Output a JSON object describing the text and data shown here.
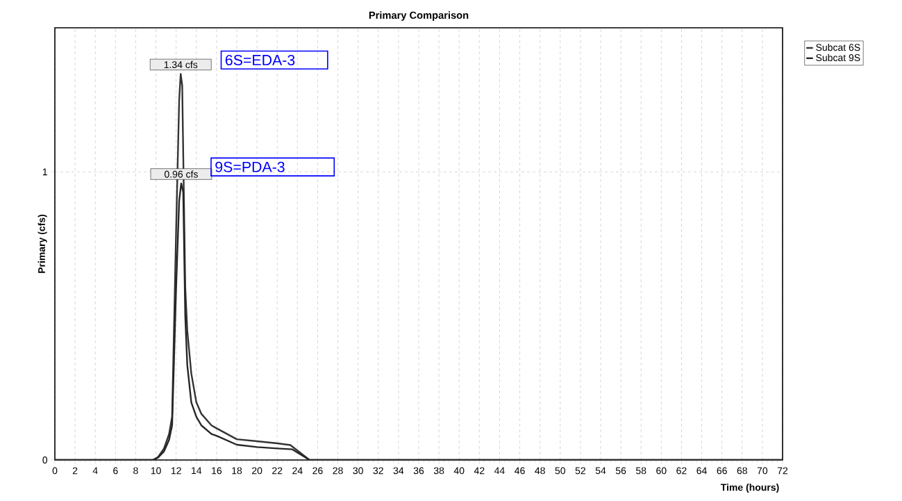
{
  "chart_data": {
    "type": "line",
    "title": "Primary Comparison",
    "xlabel": "Time  (hours)",
    "ylabel": "Primary (cfs)",
    "xlim": [
      0,
      72
    ],
    "ylim": [
      0,
      1.5
    ],
    "xticks": [
      0,
      2,
      4,
      6,
      8,
      10,
      12,
      14,
      16,
      18,
      20,
      22,
      24,
      26,
      28,
      30,
      32,
      34,
      36,
      38,
      40,
      42,
      44,
      46,
      48,
      50,
      52,
      54,
      56,
      58,
      60,
      62,
      64,
      66,
      68,
      70,
      72
    ],
    "yticks": [
      0,
      1
    ],
    "grid": true,
    "legend": "top right",
    "line_style": "solid",
    "marker": "none",
    "series": [
      {
        "name": "Subcat 6S",
        "color": "#333333",
        "x": [
          0,
          9.7,
          10.2,
          10.8,
          11.3,
          11.6,
          12.0,
          12.3,
          12.45,
          12.6,
          12.9,
          13.1,
          13.5,
          14.0,
          14.5,
          15.5,
          16.0,
          18.0,
          20.0,
          22.0,
          23.3,
          25.2,
          72
        ],
        "values": [
          0,
          0,
          0.01,
          0.04,
          0.09,
          0.15,
          0.8,
          1.25,
          1.34,
          1.3,
          0.6,
          0.45,
          0.3,
          0.2,
          0.16,
          0.12,
          0.11,
          0.072,
          0.065,
          0.058,
          0.052,
          0,
          0
        ]
      },
      {
        "name": "Subcat 9S",
        "color": "#262626",
        "x": [
          0,
          9.7,
          10.2,
          10.8,
          11.3,
          11.6,
          12.0,
          12.3,
          12.5,
          12.7,
          12.9,
          13.1,
          13.5,
          14.0,
          14.5,
          15.5,
          16.0,
          18.0,
          20.0,
          22.0,
          23.5,
          25.2,
          72
        ],
        "values": [
          0,
          0,
          0.008,
          0.03,
          0.07,
          0.12,
          0.6,
          0.9,
          0.96,
          0.93,
          0.5,
          0.33,
          0.2,
          0.15,
          0.12,
          0.09,
          0.084,
          0.053,
          0.045,
          0.04,
          0.037,
          0,
          0
        ]
      }
    ],
    "annotations": [
      {
        "text": "1.34 cfs",
        "x": 12.45,
        "y": 1.34
      },
      {
        "text": "0.96 cfs",
        "x": 12.5,
        "y": 0.96
      },
      "6S=EDA-3",
      "9S=PDA-3"
    ]
  }
}
